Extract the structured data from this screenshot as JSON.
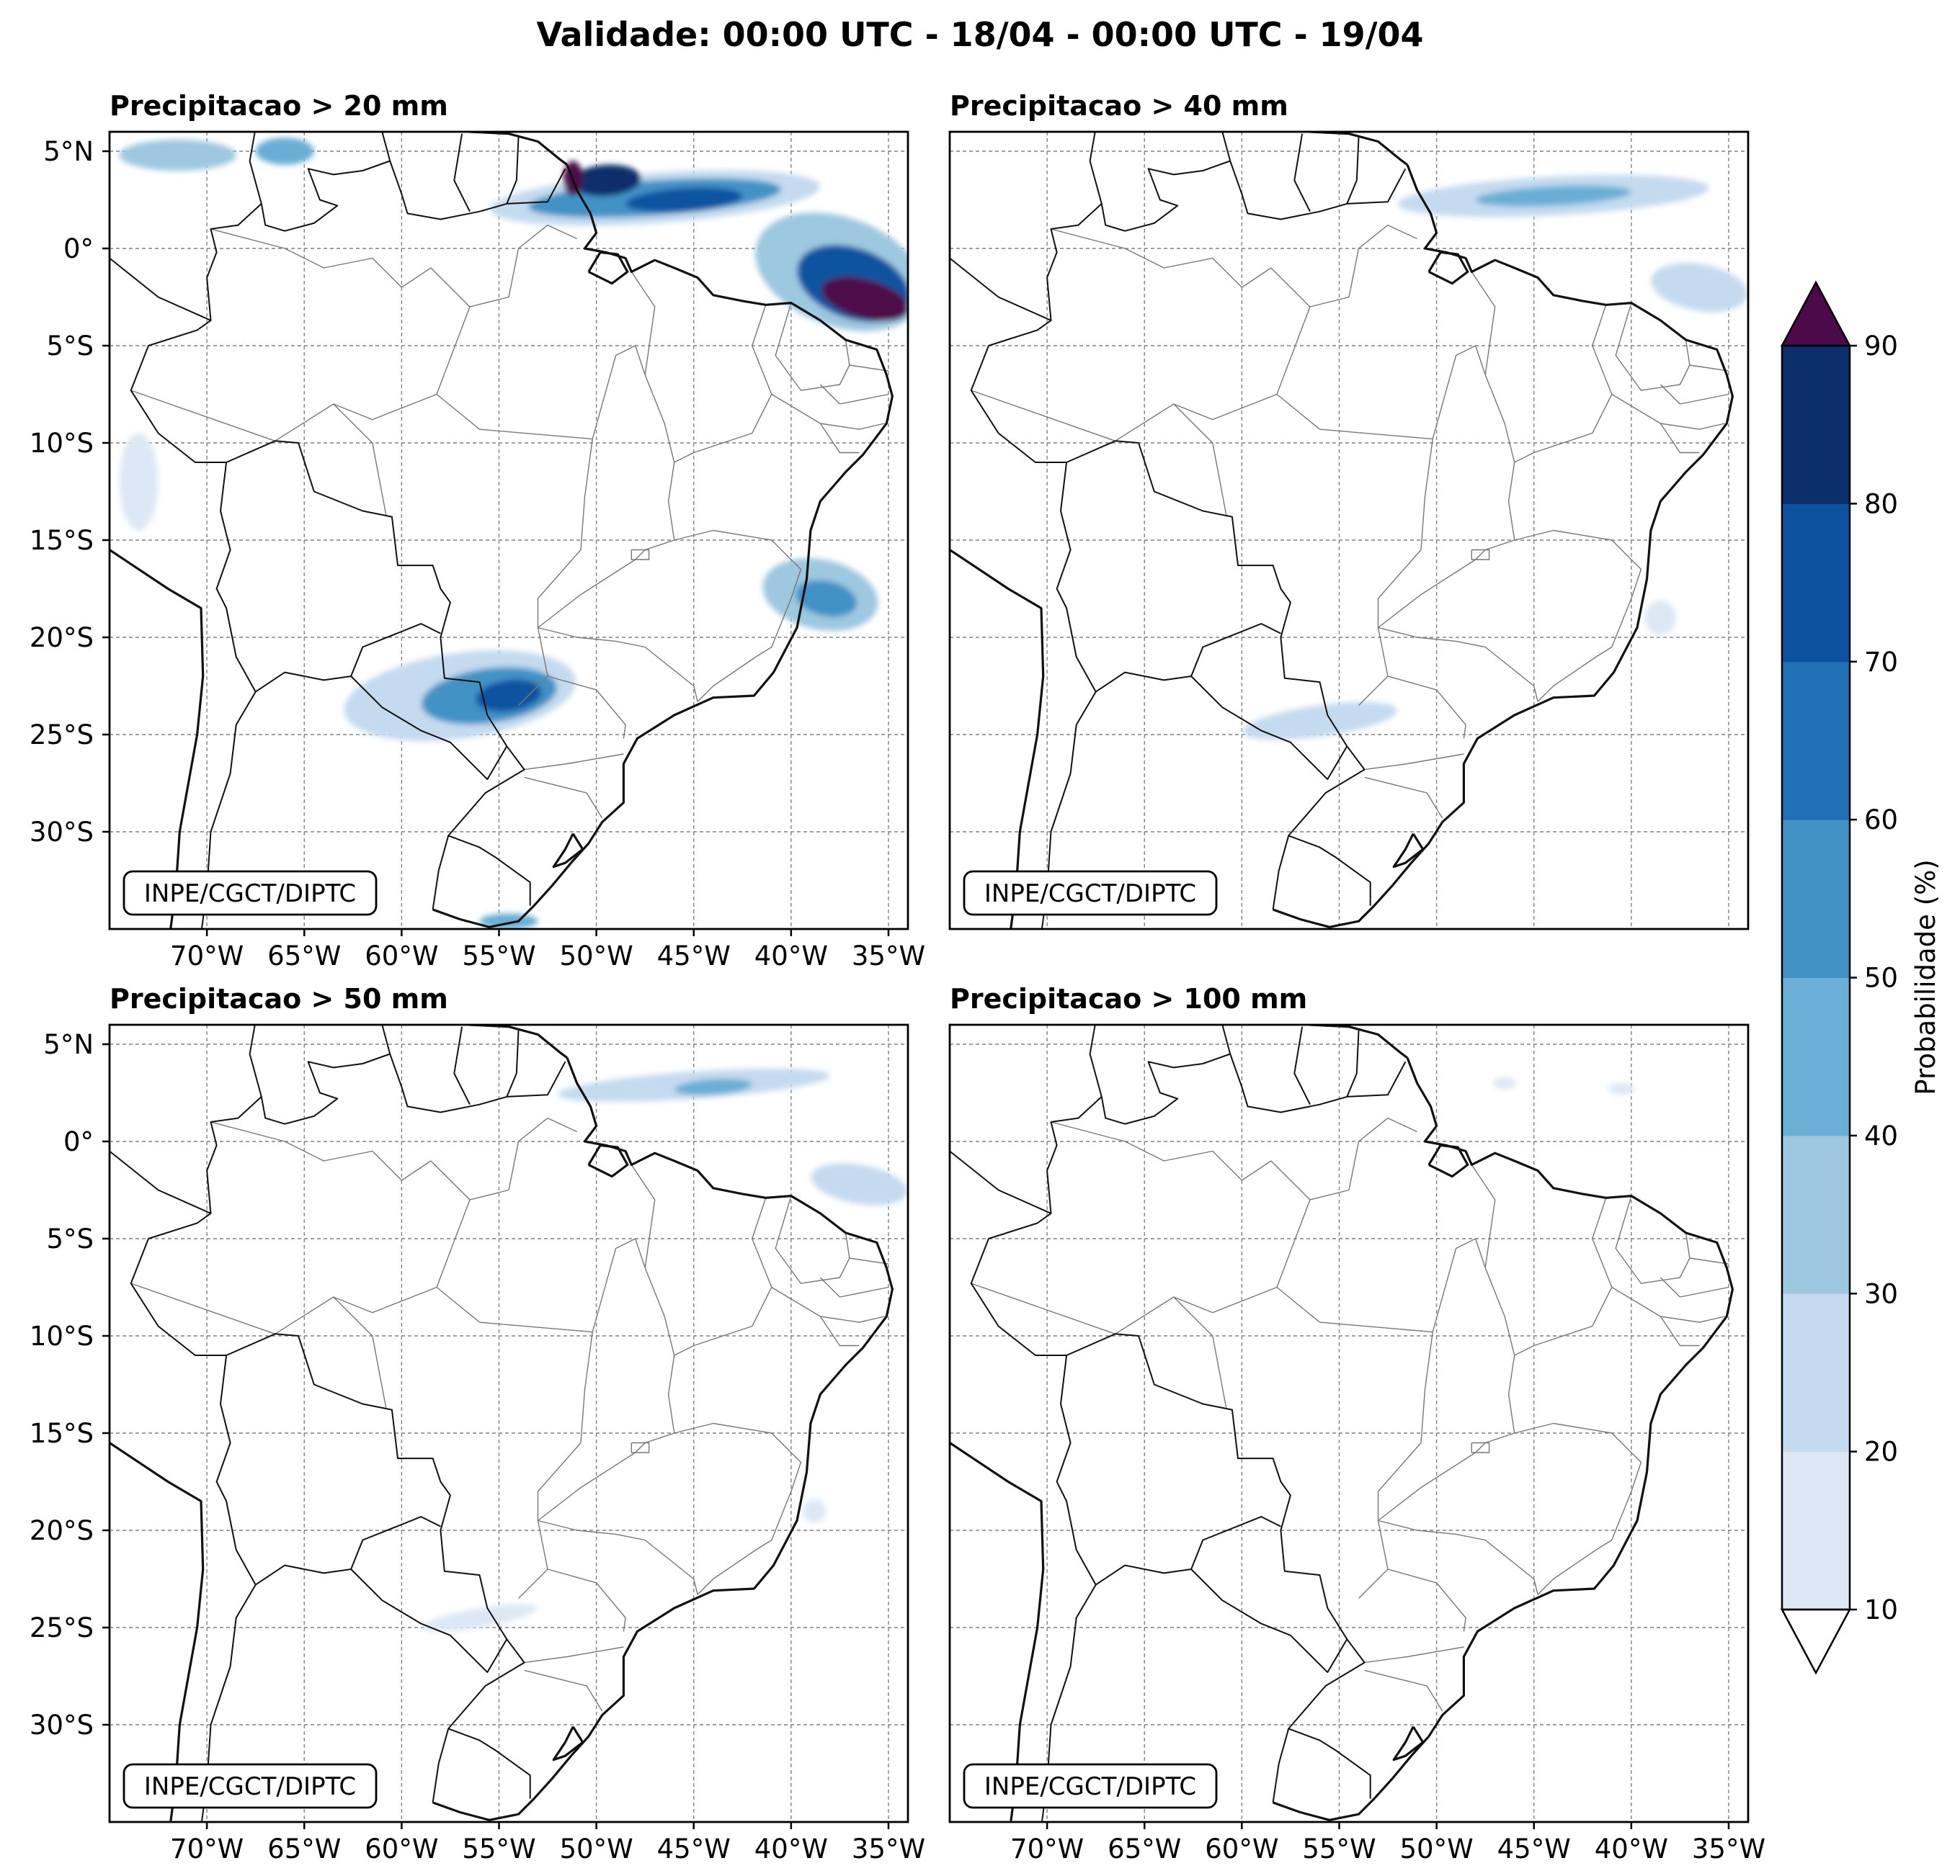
{
  "figure": {
    "title": "Validade: 00:00 UTC - 18/04 - 00:00 UTC - 19/04",
    "credit": "INPE/CGCT/DIPTC"
  },
  "map": {
    "lon_range": [
      -75,
      -34
    ],
    "lat_range": [
      -35,
      6
    ],
    "lon_ticks": [
      -70,
      -65,
      -60,
      -55,
      -50,
      -45,
      -40,
      -35
    ],
    "lon_tick_labels": [
      "70°W",
      "65°W",
      "60°W",
      "55°W",
      "50°W",
      "45°W",
      "40°W",
      "35°W"
    ],
    "lat_ticks": [
      5,
      0,
      -5,
      -10,
      -15,
      -20,
      -25,
      -30
    ],
    "lat_tick_labels": [
      "5°N",
      "0°",
      "5°S",
      "10°S",
      "15°S",
      "20°S",
      "25°S",
      "30°S"
    ],
    "grid": true,
    "panels": [
      {
        "title": "Precipitacao > 20 mm",
        "areas": [
          {
            "lon": -47,
            "lat": 2.6,
            "rx": 8.5,
            "ry": 1.3,
            "rot": -4,
            "p": 25
          },
          {
            "lon": -47,
            "lat": 2.6,
            "rx": 6.5,
            "ry": 0.9,
            "rot": -4,
            "p": 55
          },
          {
            "lon": -45.5,
            "lat": 2.5,
            "rx": 3,
            "ry": 0.6,
            "rot": -4,
            "p": 75
          },
          {
            "lon": -49.5,
            "lat": 3.5,
            "rx": 1.8,
            "ry": 0.8,
            "rot": -4,
            "p": 85
          },
          {
            "lon": -51.2,
            "lat": 3.6,
            "rx": 0.5,
            "ry": 0.9,
            "rot": 0,
            "p": 95
          },
          {
            "lon": -37.5,
            "lat": -1.2,
            "rx": 4.5,
            "ry": 2.8,
            "rot": 20,
            "p": 35
          },
          {
            "lon": -36.8,
            "lat": -1.8,
            "rx": 3,
            "ry": 1.8,
            "rot": 20,
            "p": 75
          },
          {
            "lon": -36.2,
            "lat": -2.6,
            "rx": 2.3,
            "ry": 1,
            "rot": 15,
            "p": 95
          },
          {
            "lon": -57,
            "lat": -23,
            "rx": 6,
            "ry": 2.2,
            "rot": -8,
            "p": 25
          },
          {
            "lon": -55.5,
            "lat": -23,
            "rx": 3.5,
            "ry": 1.4,
            "rot": -8,
            "p": 55
          },
          {
            "lon": -54.5,
            "lat": -23,
            "rx": 1.7,
            "ry": 0.8,
            "rot": -8,
            "p": 75
          },
          {
            "lon": -38.5,
            "lat": -17.8,
            "rx": 3,
            "ry": 1.8,
            "rot": 12,
            "p": 30
          },
          {
            "lon": -38.2,
            "lat": -18,
            "rx": 1.6,
            "ry": 0.9,
            "rot": 12,
            "p": 55
          },
          {
            "lon": -71.5,
            "lat": 4.8,
            "rx": 3,
            "ry": 0.8,
            "rot": 0,
            "p": 30
          },
          {
            "lon": -66,
            "lat": 5,
            "rx": 1.5,
            "ry": 0.7,
            "rot": 0,
            "p": 45
          },
          {
            "lon": -73.5,
            "lat": -12,
            "rx": 1,
            "ry": 2.5,
            "rot": 0,
            "p": 15
          },
          {
            "lon": -54.5,
            "lat": -34.6,
            "rx": 1.5,
            "ry": 0.4,
            "rot": 0,
            "p": 40
          }
        ]
      },
      {
        "title": "Precipitacao > 40 mm",
        "areas": [
          {
            "lon": -44,
            "lat": 2.7,
            "rx": 8,
            "ry": 1,
            "rot": -3,
            "p": 20
          },
          {
            "lon": -44,
            "lat": 2.7,
            "rx": 4,
            "ry": 0.5,
            "rot": -3,
            "p": 45
          },
          {
            "lon": -36.5,
            "lat": -2,
            "rx": 2.5,
            "ry": 1.2,
            "rot": 10,
            "p": 25
          },
          {
            "lon": -56,
            "lat": -24.3,
            "rx": 4,
            "ry": 0.8,
            "rot": -8,
            "p": 20
          },
          {
            "lon": -38.5,
            "lat": -19,
            "rx": 0.8,
            "ry": 0.9,
            "rot": 0,
            "p": 15
          }
        ]
      },
      {
        "title": "Precipitacao > 50 mm",
        "areas": [
          {
            "lon": -45,
            "lat": 2.9,
            "rx": 7,
            "ry": 0.7,
            "rot": -4,
            "p": 20
          },
          {
            "lon": -44,
            "lat": 2.8,
            "rx": 2,
            "ry": 0.4,
            "rot": -4,
            "p": 40
          },
          {
            "lon": -36.5,
            "lat": -2.2,
            "rx": 2.5,
            "ry": 1,
            "rot": 10,
            "p": 20
          },
          {
            "lon": -56,
            "lat": -24.5,
            "rx": 3,
            "ry": 0.5,
            "rot": -10,
            "p": 15
          },
          {
            "lon": -38.8,
            "lat": -19,
            "rx": 0.6,
            "ry": 0.6,
            "rot": 0,
            "p": 15
          }
        ]
      },
      {
        "title": "Precipitacao > 100 mm",
        "areas": [
          {
            "lon": -46.5,
            "lat": 3,
            "rx": 0.6,
            "ry": 0.3,
            "rot": 0,
            "p": 15
          },
          {
            "lon": -40.5,
            "lat": 2.7,
            "rx": 0.7,
            "ry": 0.3,
            "rot": 0,
            "p": 15
          }
        ]
      }
    ]
  },
  "colorbar": {
    "label": "Probabilidade (%)",
    "levels": [
      10,
      20,
      30,
      40,
      50,
      60,
      70,
      80,
      90
    ],
    "tick_labels": [
      "10",
      "20",
      "30",
      "40",
      "50",
      "60",
      "70",
      "80",
      "90"
    ],
    "colors": [
      "#dce8f5",
      "#c4daef",
      "#9dc8e0",
      "#6baed6",
      "#4292c6",
      "#2270b5",
      "#0c52a0",
      "#0a2f6b"
    ],
    "extend_min_color": "#ffffff",
    "extend_max_color": "#4d0a4a"
  }
}
